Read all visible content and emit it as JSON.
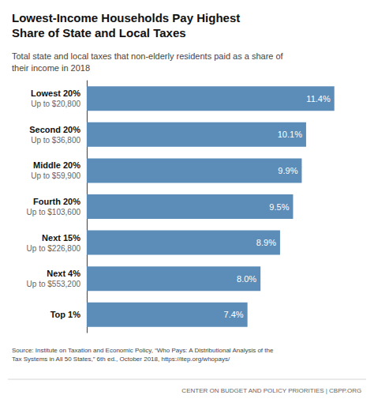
{
  "chart_data": {
    "type": "bar",
    "orientation": "horizontal",
    "title": "Lowest-Income Households Pay Highest\nShare of State and Local Taxes",
    "subtitle": "Total state and local taxes that non-elderly residents paid as a share of\ntheir income in 2018",
    "categories": [
      "Lowest 20%\nUp to $20,800",
      "Second 20%\nUp to $36,800",
      "Middle 20%\nUp to $59,900",
      "Fourth 20%\nUp to $103,600",
      "Next 15%\nUp to $226,800",
      "Next 4%\nUp to $553,200",
      "Top 1%"
    ],
    "values": [
      11.4,
      10.1,
      9.9,
      9.5,
      8.9,
      8.0,
      7.4
    ],
    "value_labels": [
      "11.4%",
      "10.1%",
      "9.9%",
      "9.5%",
      "8.9%",
      "8.0%",
      "7.4%"
    ],
    "color": "#5b8db8",
    "xlim": [
      0,
      12.5
    ],
    "grid": false,
    "data_labels": true,
    "tick_labels": "y",
    "annotations": [
      "Source: Institute on Taxation and Economic Policy, “Who Pays: A Distributional Analysis of the\nTax Systems in All 50 States,” 6th ed., October 2018, https://itep.org/whopays/",
      "CENTER ON BUDGET AND POLICY PRIORITIES | CBPP.ORG"
    ]
  }
}
